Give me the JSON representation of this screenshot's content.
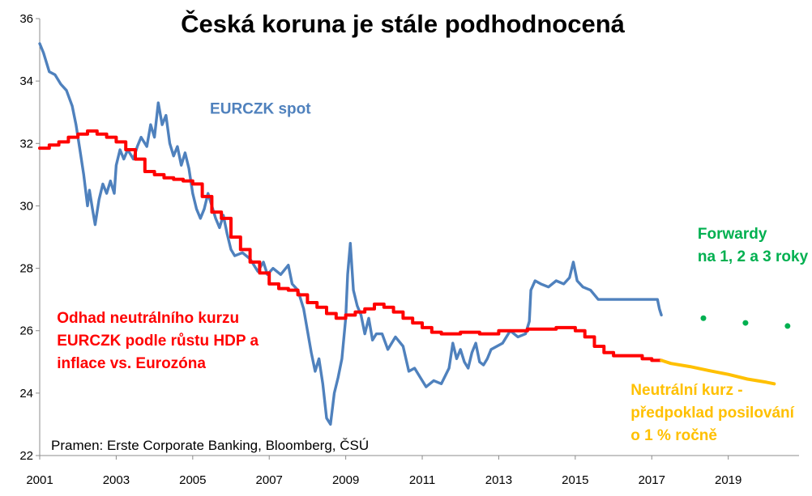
{
  "chart_data": {
    "type": "line",
    "title": "Česká koruna je stále podhodnocená",
    "xlim": [
      2001,
      2020.85
    ],
    "ylim": [
      22,
      36
    ],
    "x_ticks": [
      "2001",
      "2003",
      "2005",
      "2007",
      "2009",
      "2011",
      "2013",
      "2015",
      "2017",
      "2019"
    ],
    "y_ticks": [
      "22",
      "24",
      "26",
      "28",
      "30",
      "32",
      "34",
      "36"
    ],
    "grid": false,
    "series": [
      {
        "name": "EURCZK spot",
        "color": "#4F81BD",
        "points": [
          [
            2001.0,
            35.2
          ],
          [
            2001.1,
            34.9
          ],
          [
            2001.25,
            34.3
          ],
          [
            2001.4,
            34.2
          ],
          [
            2001.55,
            33.9
          ],
          [
            2001.7,
            33.7
          ],
          [
            2001.85,
            33.2
          ],
          [
            2001.95,
            32.6
          ],
          [
            2002.05,
            31.8
          ],
          [
            2002.15,
            31.0
          ],
          [
            2002.25,
            30.0
          ],
          [
            2002.3,
            30.5
          ],
          [
            2002.38,
            29.9
          ],
          [
            2002.45,
            29.4
          ],
          [
            2002.55,
            30.2
          ],
          [
            2002.65,
            30.7
          ],
          [
            2002.75,
            30.4
          ],
          [
            2002.85,
            30.8
          ],
          [
            2002.95,
            30.4
          ],
          [
            2003.0,
            31.3
          ],
          [
            2003.1,
            31.8
          ],
          [
            2003.2,
            31.5
          ],
          [
            2003.3,
            31.8
          ],
          [
            2003.45,
            31.5
          ],
          [
            2003.55,
            31.9
          ],
          [
            2003.65,
            32.2
          ],
          [
            2003.8,
            31.9
          ],
          [
            2003.9,
            32.6
          ],
          [
            2004.0,
            32.2
          ],
          [
            2004.1,
            33.3
          ],
          [
            2004.2,
            32.6
          ],
          [
            2004.3,
            32.9
          ],
          [
            2004.4,
            32.0
          ],
          [
            2004.5,
            31.6
          ],
          [
            2004.6,
            31.9
          ],
          [
            2004.7,
            31.3
          ],
          [
            2004.8,
            31.7
          ],
          [
            2004.9,
            31.2
          ],
          [
            2005.0,
            30.4
          ],
          [
            2005.1,
            29.9
          ],
          [
            2005.2,
            29.6
          ],
          [
            2005.3,
            29.9
          ],
          [
            2005.4,
            30.4
          ],
          [
            2005.5,
            30.0
          ],
          [
            2005.6,
            29.6
          ],
          [
            2005.7,
            29.3
          ],
          [
            2005.8,
            29.7
          ],
          [
            2005.9,
            29.1
          ],
          [
            2006.0,
            28.6
          ],
          [
            2006.1,
            28.4
          ],
          [
            2006.3,
            28.5
          ],
          [
            2006.5,
            28.3
          ],
          [
            2006.7,
            27.9
          ],
          [
            2006.85,
            28.2
          ],
          [
            2006.95,
            27.8
          ],
          [
            2007.1,
            28.0
          ],
          [
            2007.3,
            27.8
          ],
          [
            2007.5,
            28.1
          ],
          [
            2007.6,
            27.5
          ],
          [
            2007.75,
            27.3
          ],
          [
            2007.9,
            26.7
          ],
          [
            2008.0,
            26.0
          ],
          [
            2008.1,
            25.3
          ],
          [
            2008.2,
            24.7
          ],
          [
            2008.3,
            25.1
          ],
          [
            2008.4,
            24.3
          ],
          [
            2008.5,
            23.2
          ],
          [
            2008.6,
            23.0
          ],
          [
            2008.7,
            24.0
          ],
          [
            2008.8,
            24.5
          ],
          [
            2008.9,
            25.1
          ],
          [
            2009.0,
            26.4
          ],
          [
            2009.05,
            27.8
          ],
          [
            2009.12,
            28.8
          ],
          [
            2009.2,
            27.3
          ],
          [
            2009.3,
            26.8
          ],
          [
            2009.4,
            26.5
          ],
          [
            2009.5,
            25.9
          ],
          [
            2009.6,
            26.4
          ],
          [
            2009.7,
            25.7
          ],
          [
            2009.8,
            25.9
          ],
          [
            2009.95,
            25.9
          ],
          [
            2010.1,
            25.4
          ],
          [
            2010.3,
            25.8
          ],
          [
            2010.5,
            25.5
          ],
          [
            2010.65,
            24.7
          ],
          [
            2010.8,
            24.8
          ],
          [
            2010.95,
            24.5
          ],
          [
            2011.1,
            24.2
          ],
          [
            2011.3,
            24.4
          ],
          [
            2011.5,
            24.3
          ],
          [
            2011.7,
            24.8
          ],
          [
            2011.8,
            25.6
          ],
          [
            2011.9,
            25.1
          ],
          [
            2012.0,
            25.4
          ],
          [
            2012.1,
            25.0
          ],
          [
            2012.2,
            24.8
          ],
          [
            2012.3,
            25.3
          ],
          [
            2012.4,
            25.6
          ],
          [
            2012.5,
            25.0
          ],
          [
            2012.6,
            24.9
          ],
          [
            2012.7,
            25.1
          ],
          [
            2012.8,
            25.4
          ],
          [
            2012.95,
            25.5
          ],
          [
            2013.1,
            25.6
          ],
          [
            2013.3,
            26.0
          ],
          [
            2013.5,
            25.8
          ],
          [
            2013.7,
            25.9
          ],
          [
            2013.8,
            26.3
          ],
          [
            2013.84,
            27.3
          ],
          [
            2013.95,
            27.6
          ],
          [
            2014.1,
            27.5
          ],
          [
            2014.3,
            27.4
          ],
          [
            2014.5,
            27.6
          ],
          [
            2014.7,
            27.5
          ],
          [
            2014.85,
            27.7
          ],
          [
            2014.95,
            28.2
          ],
          [
            2015.05,
            27.6
          ],
          [
            2015.2,
            27.4
          ],
          [
            2015.4,
            27.3
          ],
          [
            2015.6,
            27.0
          ],
          [
            2015.8,
            27.0
          ],
          [
            2016.0,
            27.0
          ],
          [
            2016.2,
            27.0
          ],
          [
            2016.5,
            27.0
          ],
          [
            2016.8,
            27.0
          ],
          [
            2017.0,
            27.0
          ],
          [
            2017.15,
            27.0
          ],
          [
            2017.2,
            26.7
          ],
          [
            2017.25,
            26.5
          ]
        ]
      },
      {
        "name": "",
        "color": "#FF0000",
        "points": [
          [
            2001.0,
            31.85
          ],
          [
            2001.25,
            31.85
          ],
          [
            2001.25,
            31.95
          ],
          [
            2001.5,
            31.95
          ],
          [
            2001.5,
            32.05
          ],
          [
            2001.75,
            32.05
          ],
          [
            2001.75,
            32.2
          ],
          [
            2002.0,
            32.2
          ],
          [
            2002.0,
            32.3
          ],
          [
            2002.25,
            32.3
          ],
          [
            2002.25,
            32.4
          ],
          [
            2002.5,
            32.4
          ],
          [
            2002.5,
            32.3
          ],
          [
            2002.75,
            32.3
          ],
          [
            2002.75,
            32.2
          ],
          [
            2003.0,
            32.2
          ],
          [
            2003.0,
            32.05
          ],
          [
            2003.25,
            32.05
          ],
          [
            2003.25,
            31.8
          ],
          [
            2003.5,
            31.8
          ],
          [
            2003.5,
            31.5
          ],
          [
            2003.75,
            31.5
          ],
          [
            2003.75,
            31.1
          ],
          [
            2004.0,
            31.1
          ],
          [
            2004.0,
            31.0
          ],
          [
            2004.25,
            31.0
          ],
          [
            2004.25,
            30.9
          ],
          [
            2004.5,
            30.9
          ],
          [
            2004.5,
            30.85
          ],
          [
            2004.75,
            30.85
          ],
          [
            2004.75,
            30.8
          ],
          [
            2005.0,
            30.8
          ],
          [
            2005.0,
            30.7
          ],
          [
            2005.25,
            30.7
          ],
          [
            2005.25,
            30.3
          ],
          [
            2005.5,
            30.3
          ],
          [
            2005.5,
            29.8
          ],
          [
            2005.75,
            29.8
          ],
          [
            2005.75,
            29.6
          ],
          [
            2006.0,
            29.6
          ],
          [
            2006.0,
            29.0
          ],
          [
            2006.25,
            29.0
          ],
          [
            2006.25,
            28.6
          ],
          [
            2006.5,
            28.6
          ],
          [
            2006.5,
            28.2
          ],
          [
            2006.75,
            28.2
          ],
          [
            2006.75,
            27.85
          ],
          [
            2007.0,
            27.85
          ],
          [
            2007.0,
            27.5
          ],
          [
            2007.25,
            27.5
          ],
          [
            2007.25,
            27.35
          ],
          [
            2007.5,
            27.35
          ],
          [
            2007.5,
            27.3
          ],
          [
            2007.75,
            27.3
          ],
          [
            2007.75,
            27.15
          ],
          [
            2008.0,
            27.15
          ],
          [
            2008.0,
            26.9
          ],
          [
            2008.25,
            26.9
          ],
          [
            2008.25,
            26.75
          ],
          [
            2008.5,
            26.75
          ],
          [
            2008.5,
            26.55
          ],
          [
            2008.75,
            26.55
          ],
          [
            2008.75,
            26.4
          ],
          [
            2009.0,
            26.4
          ],
          [
            2009.0,
            26.5
          ],
          [
            2009.25,
            26.5
          ],
          [
            2009.25,
            26.6
          ],
          [
            2009.5,
            26.6
          ],
          [
            2009.5,
            26.7
          ],
          [
            2009.75,
            26.7
          ],
          [
            2009.75,
            26.85
          ],
          [
            2010.0,
            26.85
          ],
          [
            2010.0,
            26.75
          ],
          [
            2010.25,
            26.75
          ],
          [
            2010.25,
            26.6
          ],
          [
            2010.5,
            26.6
          ],
          [
            2010.5,
            26.4
          ],
          [
            2010.75,
            26.4
          ],
          [
            2010.75,
            26.25
          ],
          [
            2011.0,
            26.25
          ],
          [
            2011.0,
            26.1
          ],
          [
            2011.25,
            26.1
          ],
          [
            2011.25,
            25.95
          ],
          [
            2011.5,
            25.95
          ],
          [
            2011.5,
            25.9
          ],
          [
            2012.0,
            25.9
          ],
          [
            2012.0,
            25.95
          ],
          [
            2012.5,
            25.95
          ],
          [
            2012.5,
            25.9
          ],
          [
            2013.0,
            25.9
          ],
          [
            2013.0,
            26.0
          ],
          [
            2013.75,
            26.0
          ],
          [
            2013.75,
            26.05
          ],
          [
            2014.5,
            26.05
          ],
          [
            2014.5,
            26.1
          ],
          [
            2015.0,
            26.1
          ],
          [
            2015.0,
            26.0
          ],
          [
            2015.25,
            26.0
          ],
          [
            2015.25,
            25.8
          ],
          [
            2015.5,
            25.8
          ],
          [
            2015.5,
            25.5
          ],
          [
            2015.75,
            25.5
          ],
          [
            2015.75,
            25.3
          ],
          [
            2016.0,
            25.3
          ],
          [
            2016.0,
            25.2
          ],
          [
            2016.75,
            25.2
          ],
          [
            2016.75,
            25.1
          ],
          [
            2017.0,
            25.1
          ],
          [
            2017.0,
            25.05
          ],
          [
            2017.25,
            25.05
          ]
        ]
      },
      {
        "name": "",
        "color": "#FFC000",
        "points": [
          [
            2017.25,
            25.05
          ],
          [
            2017.5,
            24.95
          ],
          [
            2018.0,
            24.85
          ],
          [
            2018.5,
            24.72
          ],
          [
            2019.0,
            24.6
          ],
          [
            2019.5,
            24.45
          ],
          [
            2020.0,
            24.35
          ],
          [
            2020.2,
            24.3
          ]
        ]
      },
      {
        "name": "",
        "color": "#00B050",
        "type": "scatter",
        "points": [
          [
            2018.35,
            26.4
          ],
          [
            2019.45,
            26.25
          ],
          [
            2020.55,
            26.15
          ]
        ]
      }
    ],
    "annotations": [
      {
        "id": "spot",
        "text": [
          "EURCZK spot"
        ],
        "color": "#4F81BD",
        "x": 2005.45,
        "y": 32.95
      },
      {
        "id": "fwd",
        "text": [
          "Forwardy",
          "na 1, 2 a 3 roky"
        ],
        "color": "#00B050",
        "x": 2018.2,
        "y": 28.95
      },
      {
        "id": "neutral",
        "text": [
          "Odhad neutrálního kurzu",
          "EURCZK podle růstu HDP a",
          "inflace vs. Eurozóna"
        ],
        "color": "#FF0000",
        "x": 2001.45,
        "y": 26.25
      },
      {
        "id": "proj",
        "text": [
          "Neutrální kurz -",
          "předpoklad posilování",
          "o 1 % ročně"
        ],
        "color": "#FFC000",
        "x": 2016.45,
        "y": 23.95
      }
    ],
    "source": "Pramen: Erste Corporate Banking, Bloomberg, ČSÚ"
  }
}
